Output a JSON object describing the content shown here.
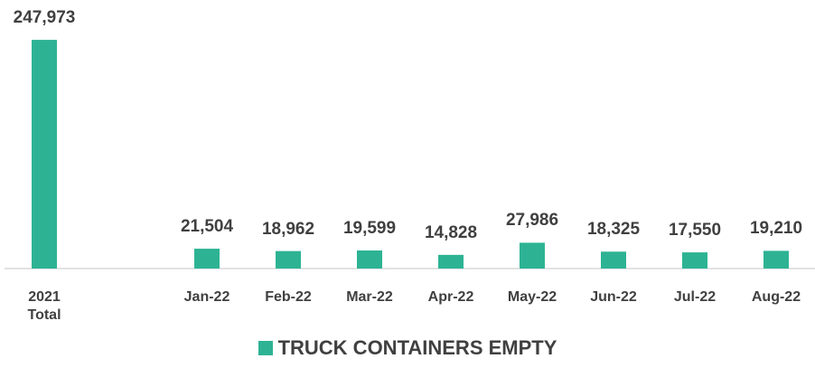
{
  "chart_data": {
    "type": "bar",
    "categories": [
      "2021 Total",
      null,
      "Jan-22",
      "Feb-22",
      "Mar-22",
      "Apr-22",
      "May-22",
      "Jun-22",
      "Jul-22",
      "Aug-22"
    ],
    "series": [
      {
        "name": "TRUCK CONTAINERS EMPTY",
        "color": "#2db394",
        "values": [
          247973,
          null,
          21504,
          18962,
          19599,
          14828,
          27986,
          18325,
          17550,
          19210
        ],
        "value_labels": [
          "247,973",
          null,
          "21,504",
          "18,962",
          "19,599",
          "14,828",
          "27,986",
          "18,325",
          "17,550",
          "19,210"
        ]
      }
    ],
    "ylim": [
      0,
      250000
    ],
    "legend": "bottom"
  }
}
